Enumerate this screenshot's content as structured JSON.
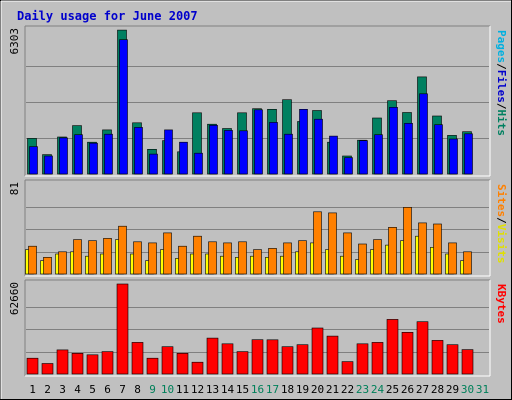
{
  "chart_data": {
    "type": "bar",
    "title": "Daily usage for June 2007",
    "x": [
      "1",
      "2",
      "3",
      "4",
      "5",
      "6",
      "7",
      "8",
      "9",
      "10",
      "11",
      "12",
      "13",
      "14",
      "15",
      "16",
      "17",
      "18",
      "19",
      "20",
      "21",
      "22",
      "23",
      "24",
      "25",
      "26",
      "27",
      "28",
      "29",
      "30",
      "31"
    ],
    "weekend_days": [
      "9",
      "10",
      "16",
      "17",
      "23",
      "24",
      "30",
      "31"
    ],
    "colors": {
      "title": "#0000cc",
      "weekday_label": "#000000",
      "weekend_label": "#00805a",
      "background": "#c0c0c0",
      "hits": "#008060",
      "files": "#0000ff",
      "sites": "#ff8000",
      "visits": "#ffff00",
      "kbytes": "#ff0000",
      "pages_label": "#00b0e0",
      "separator_label": "#000000"
    },
    "panels": [
      {
        "id": "hits-files-pages",
        "ymax_label": "6303",
        "ymax": 6303,
        "right_labels": [
          {
            "text": "Pages",
            "color": "#00b0e0"
          },
          {
            "text": "/",
            "color": "#000000"
          },
          {
            "text": "Files",
            "color": "#0000cc"
          },
          {
            "text": "/",
            "color": "#000000"
          },
          {
            "text": "Hits",
            "color": "#008060"
          }
        ],
        "series": [
          {
            "name": "Hits",
            "color": "#008060",
            "values": [
              1560,
              850,
              1620,
              2120,
              1390,
              1930,
              6300,
              2240,
              1080,
              1460,
              970,
              2680,
              2180,
              1990,
              2680,
              2860,
              2830,
              3250,
              2300,
              2780,
              1390,
              790,
              1480,
              2450,
              3210,
              2690,
              4250,
              2540,
              1690,
              1850,
              0
            ]
          },
          {
            "name": "Files",
            "color": "#0000ff",
            "values": [
              1200,
              790,
              1580,
              1720,
              1350,
              1740,
              5880,
              2040,
              870,
              1930,
              1390,
              910,
              2130,
              1910,
              1890,
              2810,
              2260,
              1740,
              2830,
              2400,
              1660,
              720,
              1460,
              1720,
              2920,
              2220,
              3510,
              2160,
              1530,
              1760,
              0
            ]
          },
          {
            "name": "Pages",
            "color": "#00b0e0",
            "values": [
              0,
              0,
              0,
              0,
              0,
              0,
              0,
              0,
              0,
              0,
              0,
              0,
              0,
              0,
              0,
              0,
              0,
              0,
              0,
              0,
              0,
              0,
              0,
              0,
              0,
              0,
              0,
              0,
              0,
              0,
              0
            ]
          }
        ]
      },
      {
        "id": "visits-sites",
        "ymax_label": "81",
        "ymax": 81,
        "right_labels": [
          {
            "text": "Sites",
            "color": "#ff8000"
          },
          {
            "text": "/",
            "color": "#000000"
          },
          {
            "text": "Visits",
            "color": "#e0e000"
          }
        ],
        "series": [
          {
            "name": "Visits",
            "color": "#ffff00",
            "values": [
              22,
              12,
              18,
              20,
              16,
              18,
              31,
              18,
              12,
              22,
              14,
              18,
              18,
              16,
              15,
              16,
              15,
              16,
              20,
              28,
              22,
              16,
              13,
              22,
              26,
              30,
              34,
              24,
              18,
              12,
              0
            ]
          },
          {
            "name": "Sites",
            "color": "#ff8000",
            "values": [
              25,
              15,
              20,
              31,
              30,
              32,
              43,
              29,
              28,
              37,
              25,
              34,
              29,
              28,
              29,
              22,
              23,
              28,
              30,
              56,
              55,
              37,
              27,
              31,
              42,
              60,
              46,
              45,
              28,
              20,
              0
            ]
          }
        ]
      },
      {
        "id": "kbytes",
        "ymax_label": "62660",
        "ymax": 62660,
        "right_labels": [
          {
            "text": "KBytes",
            "color": "#ff0000"
          }
        ],
        "series": [
          {
            "name": "KBytes",
            "color": "#ff0000",
            "values": [
              11000,
              7300,
              16800,
              14400,
              13400,
              15600,
              62660,
              22000,
              11000,
              19000,
              14400,
              8200,
              25000,
              21000,
              15600,
              23900,
              23800,
              19000,
              20400,
              32000,
              26400,
              8600,
              21000,
              22000,
              38000,
              29000,
              36400,
              23400,
              20400,
              17000,
              0
            ]
          }
        ]
      }
    ]
  }
}
